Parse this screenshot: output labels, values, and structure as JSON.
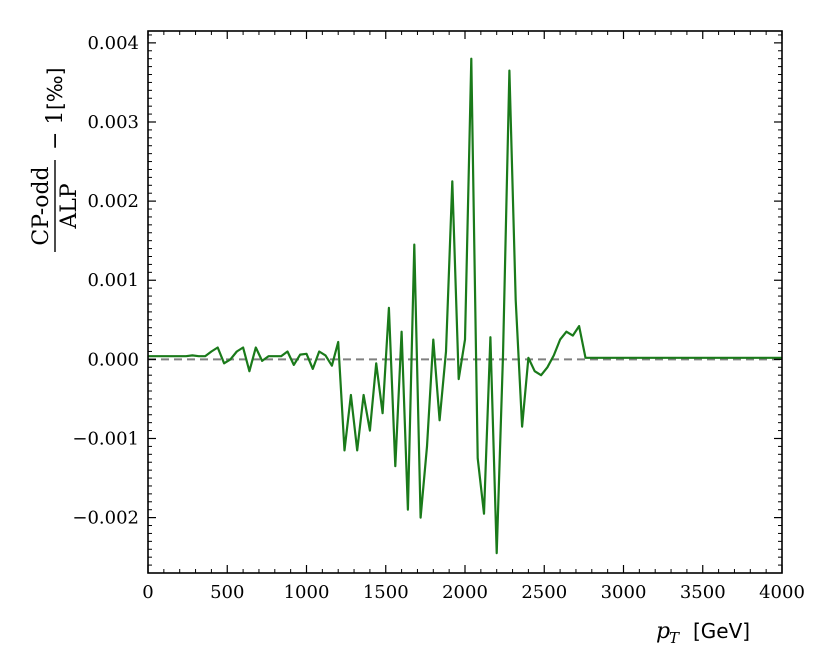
{
  "chart_data": {
    "type": "line",
    "xlabel": {
      "var": "p",
      "sub": "T",
      "unit": "[GeV]"
    },
    "ylabel": {
      "numerator": "CP-odd",
      "denominator": "ALP",
      "suffix": "− 1",
      "unit": "[‰]"
    },
    "xlim": [
      0,
      4000
    ],
    "ylim": [
      -0.0027,
      0.00415
    ],
    "xticks": [
      0,
      500,
      1000,
      1500,
      2000,
      2500,
      3000,
      3500,
      4000
    ],
    "xtick_labels": [
      "0",
      "500",
      "1000",
      "1500",
      "2000",
      "2500",
      "3000",
      "3500",
      "4000"
    ],
    "yticks": [
      -0.002,
      -0.001,
      0.0,
      0.001,
      0.002,
      0.003,
      0.004
    ],
    "ytick_labels": [
      "−0.002",
      "−0.001",
      "0.000",
      "0.001",
      "0.002",
      "0.003",
      "0.004"
    ],
    "grid": false,
    "reference_line": {
      "y": 0.0,
      "style": "dashed",
      "color": "#808080"
    },
    "series": [
      {
        "color": "#1a7a1a",
        "x": [
          0,
          40,
          80,
          120,
          160,
          200,
          240,
          280,
          320,
          360,
          400,
          440,
          480,
          520,
          560,
          600,
          640,
          680,
          720,
          760,
          800,
          840,
          880,
          920,
          960,
          1000,
          1040,
          1080,
          1120,
          1160,
          1200,
          1240,
          1280,
          1320,
          1360,
          1400,
          1440,
          1480,
          1520,
          1560,
          1600,
          1640,
          1680,
          1720,
          1760,
          1800,
          1840,
          1880,
          1920,
          1960,
          2000,
          2040,
          2080,
          2120,
          2160,
          2200,
          2240,
          2280,
          2320,
          2360,
          2400,
          2440,
          2480,
          2520,
          2560,
          2600,
          2640,
          2680,
          2720,
          2760,
          2800,
          3000,
          3500,
          4000
        ],
        "y": [
          4e-05,
          4e-05,
          4e-05,
          4e-05,
          4e-05,
          4e-05,
          4e-05,
          5e-05,
          4e-05,
          4e-05,
          0.0001,
          0.00015,
          -5e-05,
          0.0,
          0.0001,
          0.00015,
          -0.00015,
          0.00015,
          -2e-05,
          4e-05,
          4e-05,
          4e-05,
          0.0001,
          -7e-05,
          6e-05,
          7e-05,
          -0.00012,
          0.0001,
          5e-05,
          -8e-05,
          0.00022,
          -0.00115,
          -0.00045,
          -0.00115,
          -0.00045,
          -0.0009,
          -5e-05,
          -0.00068,
          0.00065,
          -0.00135,
          0.00035,
          -0.0019,
          0.00145,
          -0.002,
          -0.0011,
          0.00025,
          -0.00077,
          0.0001,
          0.00225,
          -0.00025,
          0.00025,
          0.0038,
          -0.00125,
          -0.00195,
          0.00028,
          -0.00245,
          5e-05,
          0.00365,
          0.00075,
          -0.00085,
          2e-05,
          -0.00015,
          -0.0002,
          -0.0001,
          5e-05,
          0.00025,
          0.00035,
          0.0003,
          0.00042,
          2e-05,
          2e-05,
          2e-05,
          2e-05,
          2e-05
        ]
      }
    ]
  }
}
